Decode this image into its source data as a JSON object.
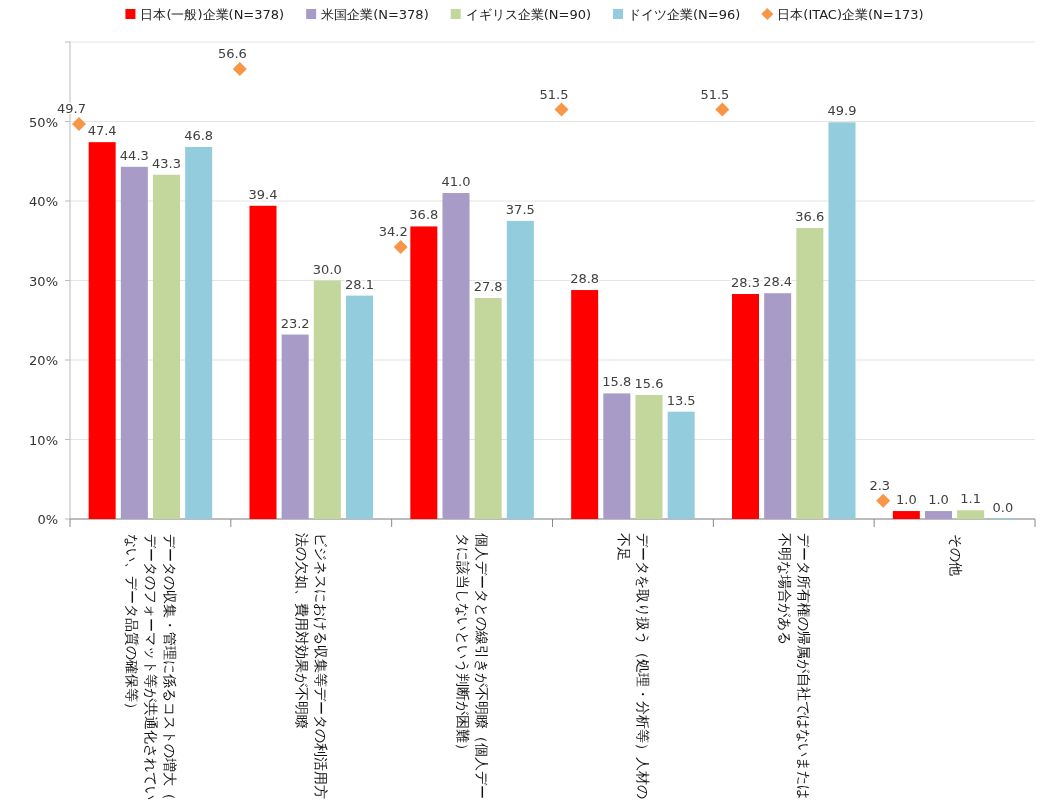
{
  "chart_data": {
    "type": "bar",
    "categories": [
      "データの収集・管理に係るコストの増大（データのフォーマット等が共通化されていない、データ品質の確保等）",
      "ビジネスにおける収集等データの利活用方法の欠如、費用対効果が不明瞭",
      "個人データとの線引きが不明瞭（個人データに該当しないという判断が困難）",
      "データを取り扱う（処理・分析等）人材の不足",
      "データ所有権の帰属が自社ではないまたは不明な場合がある",
      "その他"
    ],
    "series": [
      {
        "name": "日本(一般)企業(N=378)",
        "color": "#ff0000",
        "values": [
          47.4,
          39.4,
          36.8,
          28.8,
          28.3,
          1.0
        ],
        "value_labels": [
          "47.4",
          "39.4",
          "36.8",
          "28.8",
          "28.3",
          "1.0"
        ]
      },
      {
        "name": "米国企業(N=378)",
        "color": "#a99bc8",
        "values": [
          44.3,
          23.2,
          41.0,
          15.8,
          28.4,
          1.0
        ],
        "value_labels": [
          "44.3",
          "23.2",
          "41.0",
          "15.8",
          "28.4",
          "1.0"
        ]
      },
      {
        "name": "イギリス企業(N=90)",
        "color": "#c3d69b",
        "values": [
          43.3,
          30.0,
          27.8,
          15.6,
          36.6,
          1.1
        ],
        "value_labels": [
          "43.3",
          "30.0",
          "27.8",
          "15.6",
          "36.6",
          "1.1"
        ]
      },
      {
        "name": "ドイツ企業(N=96)",
        "color": "#93cddd",
        "values": [
          46.8,
          28.1,
          37.5,
          13.5,
          49.9,
          0.0
        ],
        "value_labels": [
          "46.8",
          "28.1",
          "37.5",
          "13.5",
          "49.9",
          "0.0"
        ]
      },
      {
        "name": "日本(ITAC)企業(N=173)",
        "color": "#f79646",
        "type": "scatter",
        "marker": "diamond",
        "values": [
          49.7,
          56.6,
          34.2,
          51.5,
          51.5,
          2.3
        ],
        "value_labels": [
          "49.7",
          "56.6",
          "34.2",
          "51.5",
          "51.5",
          "2.3"
        ]
      }
    ],
    "ylim": [
      0,
      60
    ],
    "yticks": [
      {
        "value": 0,
        "label": "0%"
      },
      {
        "value": 10,
        "label": "10%"
      },
      {
        "value": 20,
        "label": "20%"
      },
      {
        "value": 30,
        "label": "30%"
      },
      {
        "value": 40,
        "label": "40%"
      },
      {
        "value": 50,
        "label": "50%"
      },
      {
        "value": 60,
        "label": null
      }
    ],
    "grid": "y",
    "legend": "top"
  }
}
